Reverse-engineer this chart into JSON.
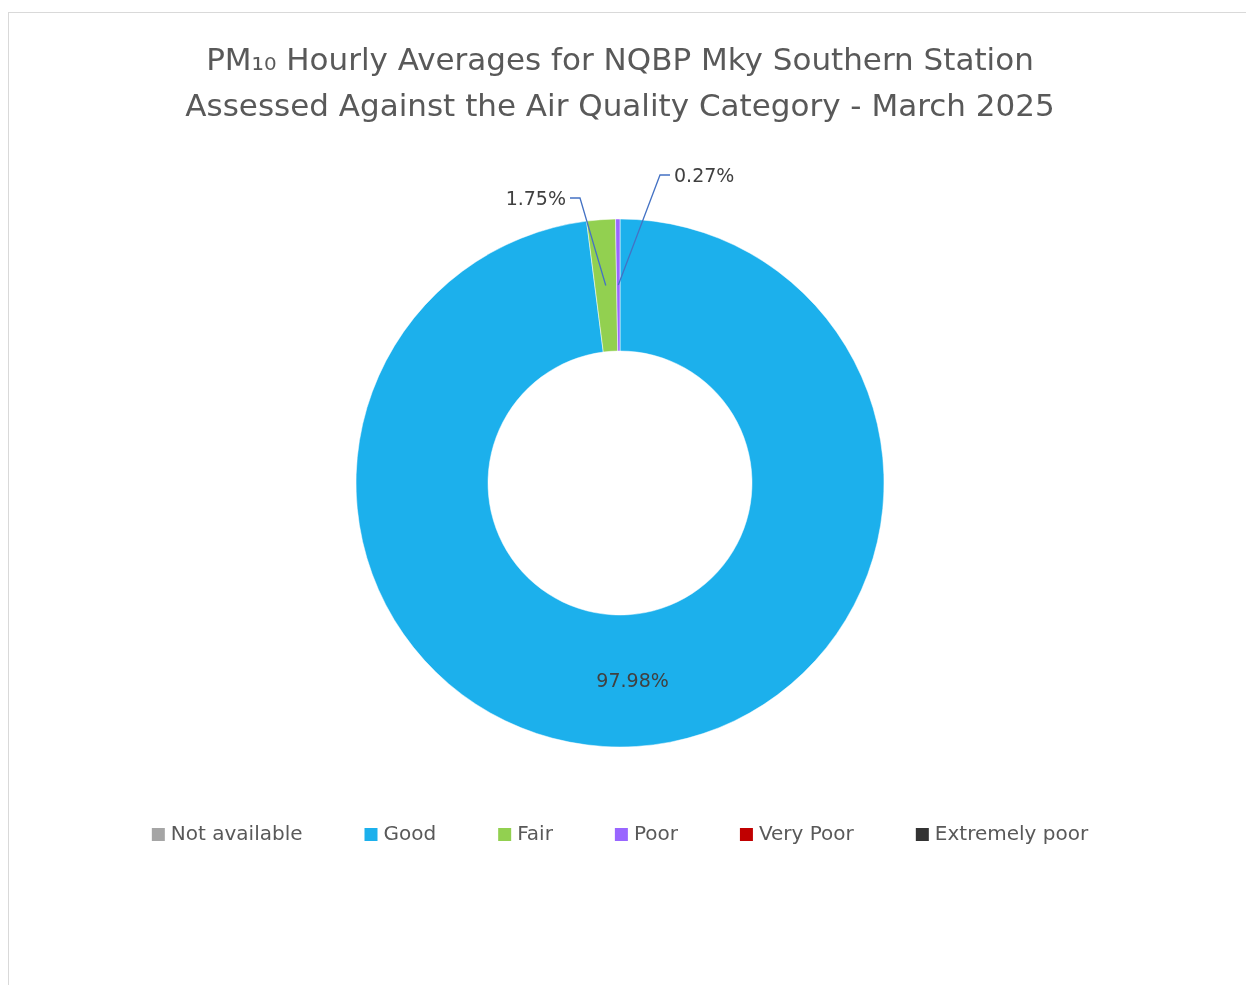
{
  "chart_data": {
    "type": "donut",
    "title": "PM₁₀ Hourly Averages for NQBP Mky Southern Station Assessed Against the Air Quality Category - March 2025",
    "categories": [
      "Not available",
      "Good",
      "Fair",
      "Poor",
      "Very Poor",
      "Extremely poor"
    ],
    "values": [
      0,
      97.98,
      1.75,
      0.27,
      0,
      0
    ],
    "colors": [
      "#a5a5a5",
      "#1cb0ec",
      "#92d050",
      "#9966ff",
      "#c00000",
      "#333333"
    ],
    "value_labels": [
      null,
      "97.98%",
      "1.75%",
      "0.27%",
      null,
      null
    ],
    "legend": "bottom"
  }
}
